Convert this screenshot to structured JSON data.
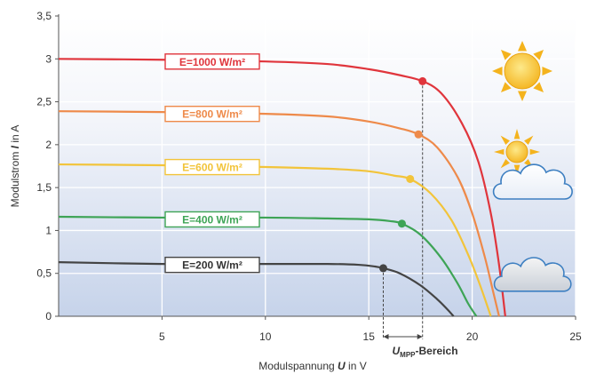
{
  "chart_data": {
    "type": "line",
    "xlabel": {
      "prefix": "Modulspannung ",
      "var": "U",
      "suffix": " in V"
    },
    "ylabel": {
      "prefix": "Modulstrom ",
      "var": "I",
      "suffix": " in A"
    },
    "xlim": [
      0,
      25
    ],
    "ylim": [
      0,
      3.5
    ],
    "xticks": [
      {
        "value": 5,
        "label": "5"
      },
      {
        "value": 10,
        "label": "10"
      },
      {
        "value": 15,
        "label": "15"
      },
      {
        "value": 20,
        "label": "20"
      },
      {
        "value": 25,
        "label": "25"
      }
    ],
    "yticks": [
      {
        "value": 0,
        "label": "0"
      },
      {
        "value": 0.5,
        "label": "0,5"
      },
      {
        "value": 1,
        "label": "1"
      },
      {
        "value": 1.5,
        "label": "1,5"
      },
      {
        "value": 2,
        "label": "2"
      },
      {
        "value": 2.5,
        "label": "2,5"
      },
      {
        "value": 3,
        "label": "3"
      },
      {
        "value": 3.5,
        "label": "3,5"
      }
    ],
    "grid": true,
    "series": [
      {
        "name": "E=1000 W/m²",
        "color": "#e0353c",
        "box_color": "#e0353c",
        "text_color": "#e0353c",
        "points": [
          [
            0,
            3.0
          ],
          [
            5,
            2.99
          ],
          [
            10,
            2.97
          ],
          [
            13,
            2.94
          ],
          [
            15,
            2.88
          ],
          [
            16.5,
            2.81
          ],
          [
            17.6,
            2.74
          ],
          [
            18.5,
            2.6
          ],
          [
            19.5,
            2.25
          ],
          [
            20.3,
            1.8
          ],
          [
            20.9,
            1.2
          ],
          [
            21.3,
            0.6
          ],
          [
            21.6,
            0.0
          ]
        ],
        "mpp": [
          17.6,
          2.74
        ]
      },
      {
        "name": "E=800 W/m²",
        "color": "#ee8a4a",
        "box_color": "#ee8a4a",
        "text_color": "#ee8a4a",
        "points": [
          [
            0,
            2.39
          ],
          [
            5,
            2.38
          ],
          [
            10,
            2.36
          ],
          [
            13,
            2.33
          ],
          [
            15,
            2.27
          ],
          [
            16.5,
            2.19
          ],
          [
            17.4,
            2.12
          ],
          [
            18.3,
            1.97
          ],
          [
            19.3,
            1.62
          ],
          [
            20.0,
            1.2
          ],
          [
            20.6,
            0.7
          ],
          [
            21.0,
            0.3
          ],
          [
            21.3,
            0.0
          ]
        ],
        "mpp": [
          17.4,
          2.12
        ]
      },
      {
        "name": "E=600 W/m²",
        "color": "#f2c43a",
        "box_color": "#f2c43a",
        "text_color": "#f2c43a",
        "points": [
          [
            0,
            1.77
          ],
          [
            5,
            1.76
          ],
          [
            10,
            1.74
          ],
          [
            13,
            1.72
          ],
          [
            15,
            1.69
          ],
          [
            16.2,
            1.64
          ],
          [
            17.0,
            1.6
          ],
          [
            18.0,
            1.43
          ],
          [
            19.0,
            1.12
          ],
          [
            19.8,
            0.72
          ],
          [
            20.4,
            0.35
          ],
          [
            20.9,
            0.0
          ]
        ],
        "mpp": [
          17.0,
          1.6
        ]
      },
      {
        "name": "E=400 W/m²",
        "color": "#3ea456",
        "box_color": "#3ea456",
        "text_color": "#3ea456",
        "points": [
          [
            0,
            1.16
          ],
          [
            5,
            1.15
          ],
          [
            10,
            1.15
          ],
          [
            13,
            1.14
          ],
          [
            15,
            1.13
          ],
          [
            16.0,
            1.11
          ],
          [
            16.6,
            1.08
          ],
          [
            17.5,
            0.95
          ],
          [
            18.5,
            0.68
          ],
          [
            19.3,
            0.38
          ],
          [
            19.8,
            0.15
          ],
          [
            20.2,
            0.0
          ]
        ],
        "mpp": [
          16.6,
          1.08
        ]
      },
      {
        "name": "E=200 W/m²",
        "color": "#444444",
        "box_color": "#444444",
        "text_color": "#333333",
        "points": [
          [
            0,
            0.63
          ],
          [
            5,
            0.61
          ],
          [
            10,
            0.61
          ],
          [
            13,
            0.61
          ],
          [
            14.5,
            0.6
          ],
          [
            15.3,
            0.58
          ],
          [
            15.7,
            0.56
          ],
          [
            16.5,
            0.5
          ],
          [
            17.5,
            0.36
          ],
          [
            18.3,
            0.2
          ],
          [
            18.8,
            0.08
          ],
          [
            19.1,
            0.0
          ]
        ],
        "mpp": [
          15.7,
          0.56
        ]
      }
    ],
    "mpp_range": {
      "from": 15.7,
      "to": 17.6,
      "main": "U",
      "sub": "MPP",
      "suffix": "-Bereich"
    },
    "icons": [
      "sun-icon",
      "sun-cloud-icon",
      "cloud-sun-icon"
    ]
  }
}
